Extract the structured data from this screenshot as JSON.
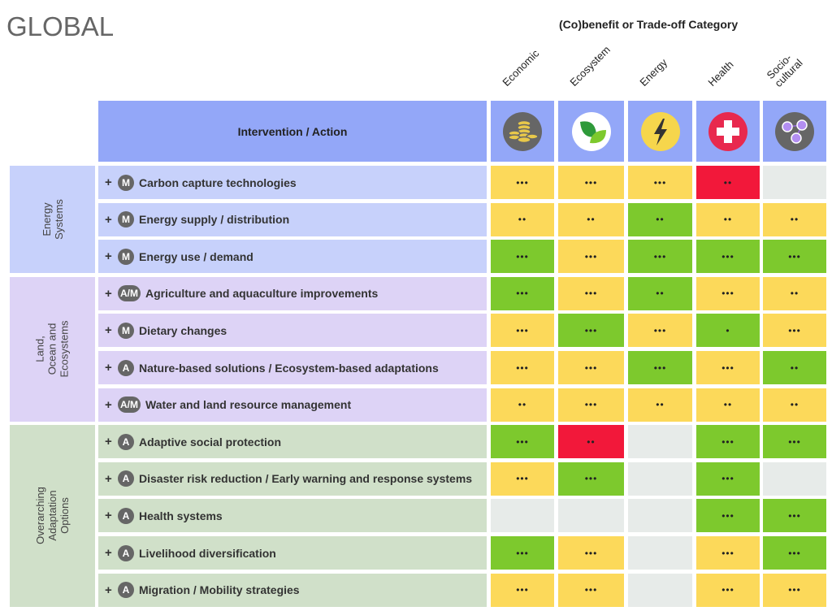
{
  "title": "GLOBAL",
  "category_header": "(Co)benefit or Trade-off Category",
  "intervention_header": "Intervention / Action",
  "categories": [
    {
      "label": "Economic",
      "icon": "coins-icon"
    },
    {
      "label": "Ecosystem",
      "icon": "leaf-icon"
    },
    {
      "label": "Energy",
      "icon": "lightning-icon"
    },
    {
      "label": "Health",
      "icon": "health-cross-icon"
    },
    {
      "label": "Socio-\ncultural",
      "icon": "people-network-icon"
    }
  ],
  "colors": {
    "yellow": "#fcd95a",
    "green": "#7dc92d",
    "red": "#f2183a",
    "empty": "#e7ebe9",
    "header": "#93a7f8"
  },
  "groups": [
    {
      "label": "Energy\nSystems",
      "color": "#c7d1fb",
      "rows": [
        0,
        1,
        2
      ]
    },
    {
      "label": "Land,\nOcean and\nEcosystems",
      "color": "#ddd3f6",
      "rows": [
        3,
        4,
        5,
        6
      ]
    },
    {
      "label": "Overarching\nAdaptation\nOptions",
      "color": "#d0e0c9",
      "rows": [
        7,
        8,
        9,
        10,
        11
      ]
    }
  ],
  "rows": [
    {
      "type": "M",
      "label": "Carbon capture technologies",
      "cells": [
        [
          "yellow",
          "•••"
        ],
        [
          "yellow",
          "•••"
        ],
        [
          "yellow",
          "•••"
        ],
        [
          "red",
          "••"
        ],
        [
          "empty",
          ""
        ]
      ]
    },
    {
      "type": "M",
      "label": "Energy supply / distribution",
      "cells": [
        [
          "yellow",
          "••"
        ],
        [
          "yellow",
          "••"
        ],
        [
          "green",
          "••"
        ],
        [
          "yellow",
          "••"
        ],
        [
          "yellow",
          "••"
        ]
      ]
    },
    {
      "type": "M",
      "label": "Energy use / demand",
      "cells": [
        [
          "green",
          "•••"
        ],
        [
          "yellow",
          "•••"
        ],
        [
          "green",
          "•••"
        ],
        [
          "green",
          "•••"
        ],
        [
          "green",
          "•••"
        ]
      ]
    },
    {
      "type": "A/M",
      "label": "Agriculture and aquaculture improvements",
      "cells": [
        [
          "green",
          "•••"
        ],
        [
          "yellow",
          "•••"
        ],
        [
          "green",
          "••"
        ],
        [
          "yellow",
          "•••"
        ],
        [
          "yellow",
          "••"
        ]
      ]
    },
    {
      "type": "M",
      "label": "Dietary changes",
      "cells": [
        [
          "yellow",
          "•••"
        ],
        [
          "green",
          "•••"
        ],
        [
          "yellow",
          "•••"
        ],
        [
          "green",
          "•"
        ],
        [
          "yellow",
          "•••"
        ]
      ]
    },
    {
      "type": "A",
      "label": "Nature-based solutions / Ecosystem-based adaptations",
      "cells": [
        [
          "yellow",
          "•••"
        ],
        [
          "yellow",
          "•••"
        ],
        [
          "green",
          "•••"
        ],
        [
          "yellow",
          "•••"
        ],
        [
          "green",
          "••"
        ]
      ]
    },
    {
      "type": "A/M",
      "label": "Water and land resource management",
      "cells": [
        [
          "yellow",
          "••"
        ],
        [
          "yellow",
          "•••"
        ],
        [
          "yellow",
          "••"
        ],
        [
          "yellow",
          "••"
        ],
        [
          "yellow",
          "••"
        ]
      ]
    },
    {
      "type": "A",
      "label": "Adaptive social protection",
      "cells": [
        [
          "green",
          "•••"
        ],
        [
          "red",
          "••"
        ],
        [
          "empty",
          ""
        ],
        [
          "green",
          "•••"
        ],
        [
          "green",
          "•••"
        ]
      ]
    },
    {
      "type": "A",
      "label": "Disaster risk reduction / Early warning and response systems",
      "cells": [
        [
          "yellow",
          "•••"
        ],
        [
          "green",
          "•••"
        ],
        [
          "empty",
          ""
        ],
        [
          "green",
          "•••"
        ],
        [
          "empty",
          ""
        ]
      ]
    },
    {
      "type": "A",
      "label": "Health systems",
      "cells": [
        [
          "empty",
          ""
        ],
        [
          "empty",
          ""
        ],
        [
          "empty",
          ""
        ],
        [
          "green",
          "•••"
        ],
        [
          "green",
          "•••"
        ]
      ]
    },
    {
      "type": "A",
      "label": "Livelihood diversification",
      "cells": [
        [
          "green",
          "•••"
        ],
        [
          "yellow",
          "•••"
        ],
        [
          "empty",
          ""
        ],
        [
          "yellow",
          "•••"
        ],
        [
          "green",
          "•••"
        ]
      ]
    },
    {
      "type": "A",
      "label": "Migration / Mobility strategies",
      "cells": [
        [
          "yellow",
          "•••"
        ],
        [
          "yellow",
          "•••"
        ],
        [
          "empty",
          ""
        ],
        [
          "yellow",
          "•••"
        ],
        [
          "yellow",
          "•••"
        ]
      ]
    }
  ],
  "expand_symbol": "+"
}
